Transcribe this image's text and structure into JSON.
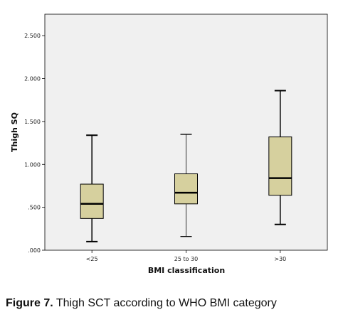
{
  "caption": {
    "label": "Figure 7.",
    "text": " Thigh SCT according to WHO BMI category"
  },
  "colors": {
    "plot_background": "#f0f0f0",
    "box_fill": "#d6d09e",
    "stroke": "#000000"
  },
  "chart_data": {
    "type": "boxplot",
    "xlabel": "BMI classification",
    "ylabel": "Thigh SQ",
    "ylim": [
      0,
      2.75
    ],
    "yticks": [
      0,
      0.5,
      1.0,
      1.5,
      2.0,
      2.5
    ],
    "ytick_labels": [
      ".000",
      ".500",
      "1.000",
      "1.500",
      "2.000",
      "2.500"
    ],
    "grid": false,
    "categories": [
      "<25",
      "25 to 30",
      ">30"
    ],
    "boxes": [
      {
        "category": "<25",
        "min": 0.1,
        "q1": 0.37,
        "median": 0.54,
        "q3": 0.77,
        "max": 1.34
      },
      {
        "category": "25 to 30",
        "min": 0.16,
        "q1": 0.54,
        "median": 0.67,
        "q3": 0.89,
        "max": 1.35
      },
      {
        "category": ">30",
        "min": 0.3,
        "q1": 0.64,
        "median": 0.84,
        "q3": 1.32,
        "max": 1.86
      }
    ]
  }
}
